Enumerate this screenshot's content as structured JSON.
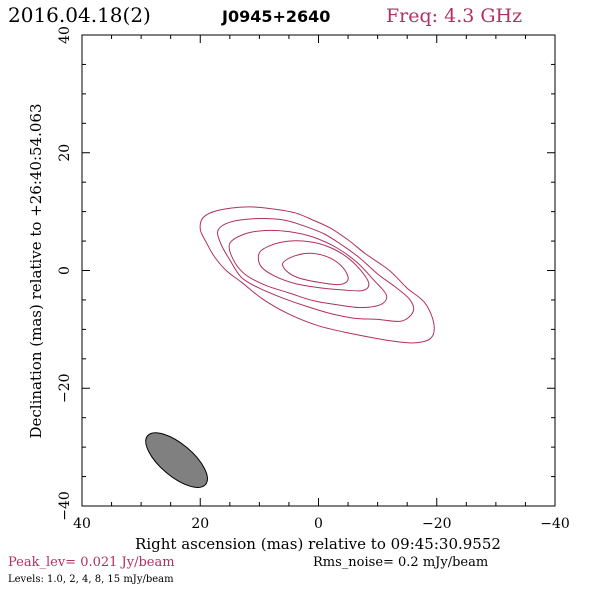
{
  "header": {
    "date": "2016.04.18(2)",
    "source": "J0945+2640",
    "freq": "Freq: 4.3 GHz"
  },
  "footer": {
    "peak": "Peak_lev=  0.021 Jy/beam",
    "rms": "Rms_noise=   0.2 mJy/beam",
    "levels": "Levels: 1.0,    2,    4,    8,   15 mJy/beam"
  },
  "colors": {
    "accent": "#b03060",
    "contour": "#b03060",
    "beam_fill": "#808080",
    "axis": "#000000"
  },
  "chart_data": {
    "type": "contour",
    "xlabel": "Right ascension (mas) relative to 09:45:30.9552",
    "ylabel": "Declination (mas) relative to +26:40:54.063",
    "xlim": [
      40,
      -40
    ],
    "ylim": [
      -40,
      40
    ],
    "x_ticks": [
      40,
      20,
      0,
      -20,
      -40
    ],
    "x_tick_labels": [
      "40",
      "20",
      "0",
      "−20",
      "−40"
    ],
    "y_ticks": [
      -40,
      -20,
      0,
      20,
      40
    ],
    "y_tick_labels": [
      "−40",
      "−20",
      "0",
      "20",
      "40"
    ],
    "contour_levels_mJy": [
      1.0,
      2,
      4,
      8,
      15
    ],
    "peak_Jy_per_beam": 0.021,
    "rms_mJy_per_beam": 0.2,
    "contours": [
      {
        "level": 1.0,
        "points": [
          [
            19.5,
            9
          ],
          [
            17,
            10.2
          ],
          [
            12,
            10.8
          ],
          [
            8,
            10.5
          ],
          [
            4,
            9.8
          ],
          [
            1,
            8.6
          ],
          [
            -2,
            7.2
          ],
          [
            -5,
            5.2
          ],
          [
            -8,
            2.8
          ],
          [
            -12,
            0
          ],
          [
            -15,
            -3
          ],
          [
            -18,
            -5.5
          ],
          [
            -19.5,
            -9
          ],
          [
            -19,
            -11.5
          ],
          [
            -16,
            -12.3
          ],
          [
            -12,
            -11.9
          ],
          [
            -6,
            -10.8
          ],
          [
            0,
            -9.4
          ],
          [
            5,
            -7.4
          ],
          [
            9.5,
            -4.8
          ],
          [
            13,
            -2
          ],
          [
            15.5,
            -0.1
          ],
          [
            17.5,
            2.2
          ],
          [
            19,
            4.8
          ],
          [
            20,
            7
          ]
        ]
      },
      {
        "level": 2,
        "points": [
          [
            17,
            6.8
          ],
          [
            15,
            8.2
          ],
          [
            11,
            8.8
          ],
          [
            6,
            8.6
          ],
          [
            2,
            7.4
          ],
          [
            -1,
            6.2
          ],
          [
            -4,
            4.3
          ],
          [
            -7,
            2.1
          ],
          [
            -10,
            -0.6
          ],
          [
            -13,
            -2.8
          ],
          [
            -15.5,
            -5
          ],
          [
            -16,
            -7
          ],
          [
            -14,
            -8.6
          ],
          [
            -10,
            -8.3
          ],
          [
            -6,
            -8.1
          ],
          [
            -2,
            -7.3
          ],
          [
            2,
            -6.1
          ],
          [
            6,
            -4.7
          ],
          [
            10,
            -3
          ],
          [
            13,
            -1.2
          ],
          [
            15,
            1.8
          ],
          [
            16.5,
            4.5
          ]
        ]
      },
      {
        "level": 4,
        "points": [
          [
            15,
            4.6
          ],
          [
            12.5,
            6.2
          ],
          [
            9,
            6.8
          ],
          [
            5,
            6.6
          ],
          [
            1,
            5.7
          ],
          [
            -3,
            3.9
          ],
          [
            -6.5,
            1.4
          ],
          [
            -9.5,
            -1.8
          ],
          [
            -11.5,
            -4.2
          ],
          [
            -10.5,
            -5.8
          ],
          [
            -7,
            -6.3
          ],
          [
            -3,
            -5.8
          ],
          [
            1,
            -5.1
          ],
          [
            5,
            -3.8
          ],
          [
            9,
            -2.5
          ],
          [
            12.5,
            -0.6
          ],
          [
            14.5,
            2
          ]
        ]
      },
      {
        "level": 8,
        "points": [
          [
            10,
            3
          ],
          [
            8,
            4.3
          ],
          [
            5,
            5
          ],
          [
            1.5,
            4.9
          ],
          [
            -1.5,
            4.1
          ],
          [
            -4.5,
            2.5
          ],
          [
            -7,
            0.2
          ],
          [
            -8.5,
            -2.2
          ],
          [
            -7.5,
            -3.4
          ],
          [
            -4,
            -3.3
          ],
          [
            0,
            -2.9
          ],
          [
            4,
            -2.2
          ],
          [
            7.5,
            -0.9
          ],
          [
            9.8,
            0.8
          ]
        ]
      },
      {
        "level": 15,
        "points": [
          [
            6,
            1.3
          ],
          [
            4,
            2.5
          ],
          [
            1,
            2.9
          ],
          [
            -2,
            2.1
          ],
          [
            -4.2,
            0.4
          ],
          [
            -5,
            -1.5
          ],
          [
            -3.5,
            -2.4
          ],
          [
            0,
            -2
          ],
          [
            3.5,
            -1.2
          ],
          [
            5.5,
            0
          ]
        ]
      }
    ],
    "beam": {
      "center_x": 24,
      "center_y": -32.2,
      "major_mas": 12.8,
      "minor_mas": 5.5,
      "pa_deg": 40
    }
  }
}
